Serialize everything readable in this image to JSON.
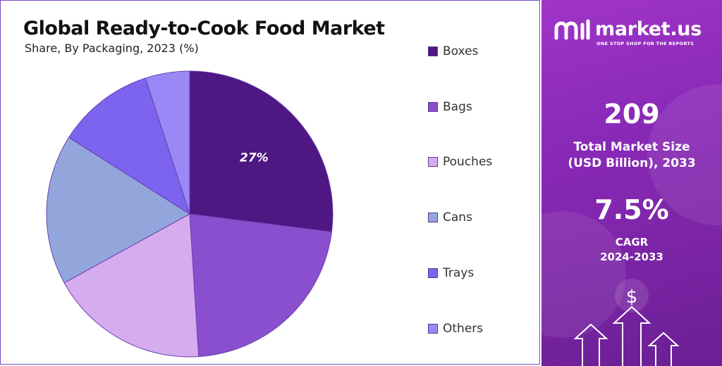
{
  "chart_data": {
    "type": "pie",
    "title": "Global Ready-to-Cook Food Market",
    "subtitle": "Share, By Packaging, 2023 (%)",
    "categories": [
      "Boxes",
      "Bags",
      "Pouches",
      "Cans",
      "Trays",
      "Others"
    ],
    "values": [
      27,
      22,
      18,
      17,
      11,
      5
    ],
    "colors": [
      "#4e1782",
      "#8a4fcf",
      "#d5acee",
      "#93a6dc",
      "#7c64ee",
      "#9a88f6"
    ],
    "data_labels": [
      "27%",
      "",
      "",
      "",
      "",
      ""
    ],
    "legend_position": "right"
  },
  "sidebar": {
    "brand": "market.us",
    "tagline": "ONE STOP SHOP FOR THE REPORTS",
    "market_size_value": "209",
    "market_size_label_line1": "Total Market Size",
    "market_size_label_line2": "(USD Billion), 2033",
    "cagr_value": "7.5%",
    "cagr_label": "CAGR",
    "cagr_period": "2024-2033",
    "dollar_symbol": "$",
    "icons": [
      "market-us-logo-icon",
      "dollar-icon",
      "arrow-up-icon"
    ]
  }
}
